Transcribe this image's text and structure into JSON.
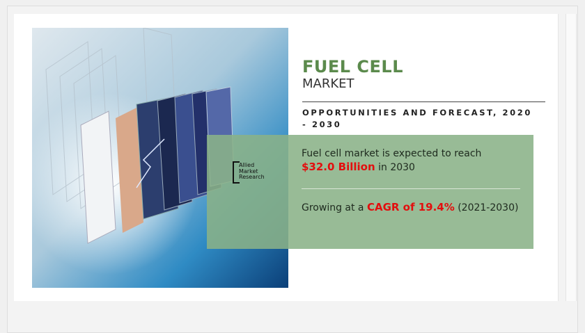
{
  "header": {
    "title": "FUEL CELL",
    "subtitle": "MARKET",
    "tagline": "OPPORTUNITIES AND FORECAST, 2020 - 2030"
  },
  "logo": {
    "lines": [
      "Allied",
      "Market",
      "Research"
    ]
  },
  "facts": [
    {
      "parts": [
        "Fuel cell market is expected to reach",
        "$32.0 Billion",
        "in 2030"
      ]
    },
    {
      "parts": [
        "Growing at a",
        "CAGR of 19.4%",
        "(2021-2030)"
      ]
    }
  ]
}
